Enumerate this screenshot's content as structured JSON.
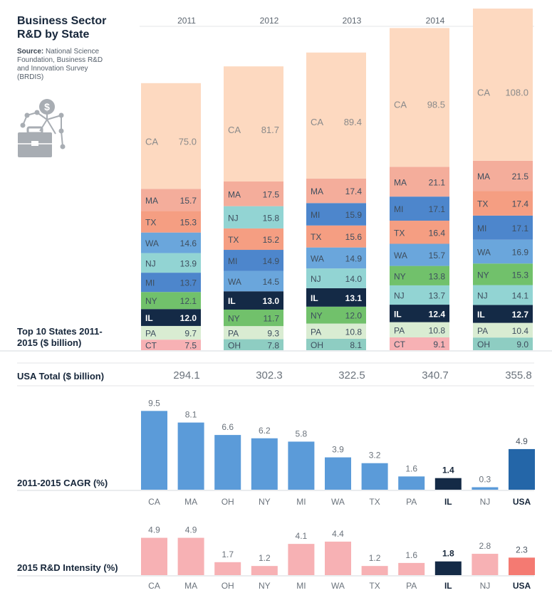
{
  "header": {
    "title_line1": "Business Sector",
    "title_line2": "R&D by State",
    "source_label": "Source:",
    "source_text": "National Science Foundation, Business R&D and Innovation Survey (BRDIS)"
  },
  "icon_name": "briefcase-network-dollar-icon",
  "colors": {
    "CA": "#fdd9c0",
    "MA": "#f4ad9b",
    "TX": "#f59e82",
    "WA": "#6aa6dc",
    "NJ": "#92d4d3",
    "MI": "#4d86cc",
    "NY": "#71c16b",
    "IL": "#142a46",
    "PA": "#d9ecd2",
    "CT": "#f7b1b4",
    "OH": "#8ecdc2",
    "cagr_bar": "#5b9bd9",
    "cagr_usa": "#2466a8",
    "intensity_bar": "#f7b1b4",
    "intensity_usa": "#f47a72",
    "il_bar": "#142a46"
  },
  "chart_data": [
    {
      "type": "bar",
      "stacked": true,
      "title": "Top 10 States 2011-2015 ($ billion)",
      "categories": [
        "2011",
        "2012",
        "2013",
        "2014",
        "2015"
      ],
      "stacks": [
        {
          "year": "2011",
          "total": 294.1,
          "segments": [
            {
              "state": "CT",
              "value": 7.5
            },
            {
              "state": "PA",
              "value": 9.7
            },
            {
              "state": "IL",
              "value": 12.0
            },
            {
              "state": "NY",
              "value": 12.1
            },
            {
              "state": "MI",
              "value": 13.7
            },
            {
              "state": "NJ",
              "value": 13.9
            },
            {
              "state": "WA",
              "value": 14.6
            },
            {
              "state": "TX",
              "value": 15.3
            },
            {
              "state": "MA",
              "value": 15.7
            },
            {
              "state": "CA",
              "value": 75.0
            }
          ]
        },
        {
          "year": "2012",
          "total": 302.3,
          "segments": [
            {
              "state": "OH",
              "value": 7.8
            },
            {
              "state": "PA",
              "value": 9.3
            },
            {
              "state": "NY",
              "value": 11.7
            },
            {
              "state": "IL",
              "value": 13.0
            },
            {
              "state": "WA",
              "value": 14.5
            },
            {
              "state": "MI",
              "value": 14.9
            },
            {
              "state": "TX",
              "value": 15.2
            },
            {
              "state": "NJ",
              "value": 15.8
            },
            {
              "state": "MA",
              "value": 17.5
            },
            {
              "state": "CA",
              "value": 81.7
            }
          ]
        },
        {
          "year": "2013",
          "total": 322.5,
          "segments": [
            {
              "state": "OH",
              "value": 8.1
            },
            {
              "state": "PA",
              "value": 10.8
            },
            {
              "state": "NY",
              "value": 12.0
            },
            {
              "state": "IL",
              "value": 13.1
            },
            {
              "state": "NJ",
              "value": 14.0
            },
            {
              "state": "WA",
              "value": 14.9
            },
            {
              "state": "TX",
              "value": 15.6
            },
            {
              "state": "MI",
              "value": 15.9
            },
            {
              "state": "MA",
              "value": 17.4
            },
            {
              "state": "CA",
              "value": 89.4
            }
          ]
        },
        {
          "year": "2014",
          "total": 340.7,
          "segments": [
            {
              "state": "CT",
              "value": 9.1
            },
            {
              "state": "PA",
              "value": 10.8
            },
            {
              "state": "IL",
              "value": 12.4
            },
            {
              "state": "NJ",
              "value": 13.7
            },
            {
              "state": "NY",
              "value": 13.8
            },
            {
              "state": "WA",
              "value": 15.7
            },
            {
              "state": "TX",
              "value": 16.4
            },
            {
              "state": "MI",
              "value": 17.1
            },
            {
              "state": "MA",
              "value": 21.1
            },
            {
              "state": "CA",
              "value": 98.5
            }
          ]
        },
        {
          "year": "2015",
          "total": 355.8,
          "segments": [
            {
              "state": "OH",
              "value": 9.0
            },
            {
              "state": "PA",
              "value": 10.4
            },
            {
              "state": "IL",
              "value": 12.7
            },
            {
              "state": "NJ",
              "value": 14.1
            },
            {
              "state": "NY",
              "value": 15.3
            },
            {
              "state": "WA",
              "value": 16.9
            },
            {
              "state": "MI",
              "value": 17.1
            },
            {
              "state": "TX",
              "value": 17.4
            },
            {
              "state": "MA",
              "value": 21.5
            },
            {
              "state": "CA",
              "value": 108.0
            }
          ]
        }
      ],
      "totals_label": "USA Total ($ billion)"
    },
    {
      "type": "bar",
      "title": "2011-2015 CAGR (%)",
      "categories": [
        "CA",
        "MA",
        "OH",
        "NY",
        "MI",
        "WA",
        "TX",
        "PA",
        "IL",
        "NJ",
        "USA"
      ],
      "values": [
        9.5,
        8.1,
        6.6,
        6.2,
        5.8,
        3.9,
        3.2,
        1.6,
        1.4,
        0.3,
        4.9
      ]
    },
    {
      "type": "bar",
      "title": "2015 R&D Intensity (%)",
      "categories": [
        "CA",
        "MA",
        "OH",
        "NY",
        "MI",
        "WA",
        "TX",
        "PA",
        "IL",
        "NJ",
        "USA"
      ],
      "values": [
        4.9,
        4.9,
        1.7,
        1.2,
        4.1,
        4.4,
        1.2,
        1.6,
        1.8,
        2.8,
        2.3
      ]
    }
  ]
}
